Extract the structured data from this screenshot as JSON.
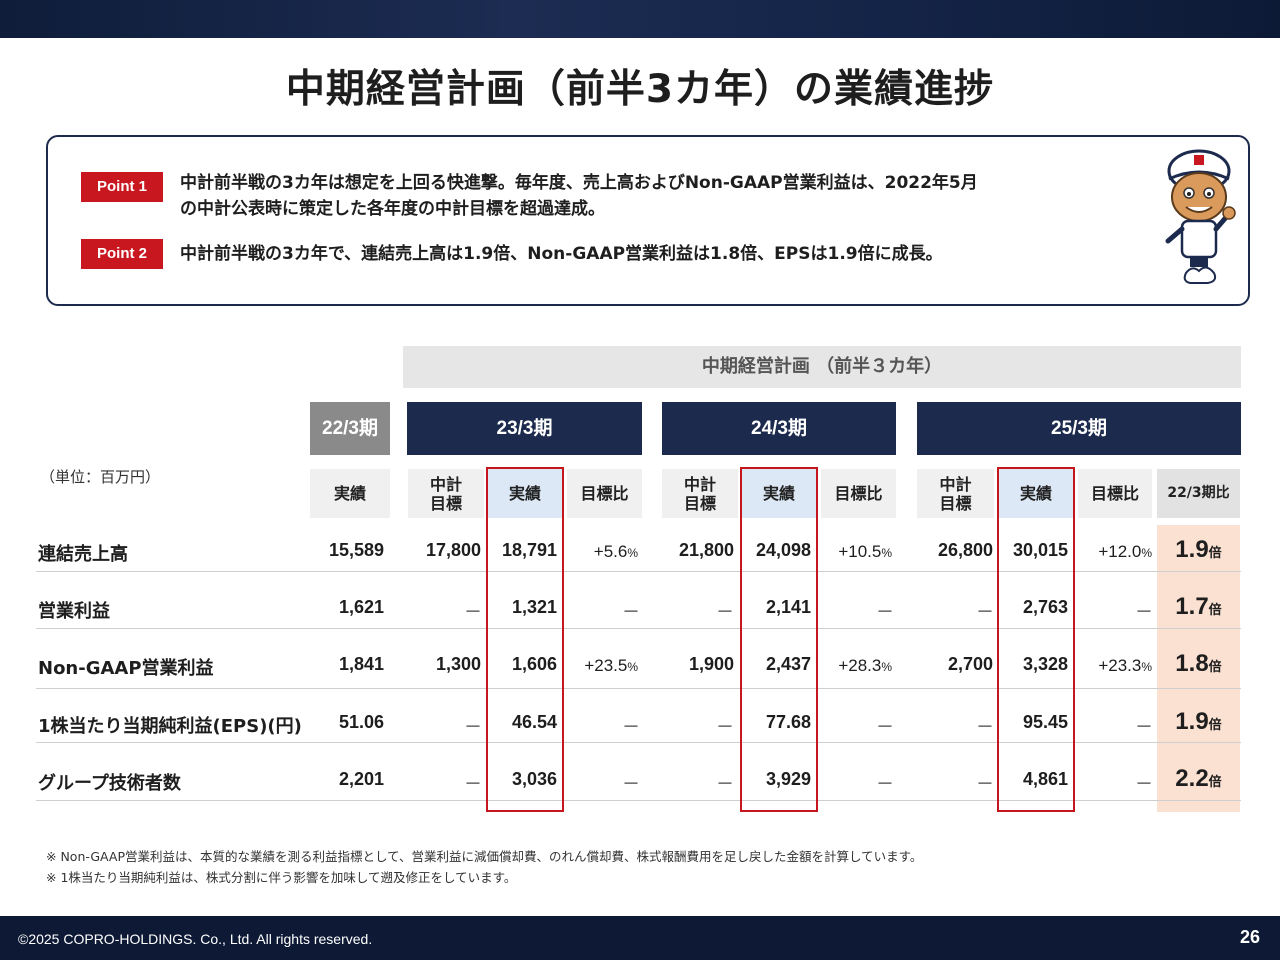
{
  "title": "中期経営計画（前半3カ年）の業績進捗",
  "points": [
    {
      "badge": "Point 1",
      "text": "中計前半戦の3カ年は想定を上回る快進撃。毎年度、売上高およびNon-GAAP営業利益は、2022年5月\nの中計公表時に策定した各年度の中計目標を超過達成。"
    },
    {
      "badge": "Point 2",
      "text": "中計前半戦の3カ年で、連結売上高は1.9倍、Non-GAAP営業利益は1.8倍、EPSは1.9倍に成長。"
    }
  ],
  "table": {
    "plan_header": "中期経営計画 （前半３カ年）",
    "unit_label": "（単位：百万円）",
    "years": {
      "prev": "22/3期",
      "y23": "23/3期",
      "y24": "24/3期",
      "y25": "25/3期"
    },
    "sub_headers": {
      "actual": "実績",
      "target": "中計\n目標",
      "ratio": "目標比",
      "vs22": "22/3期比"
    },
    "rows": [
      {
        "label": "連結売上高",
        "prev": "15,589",
        "t23": "17,800",
        "a23": "18,791",
        "r23": "+5.6",
        "t24": "21,800",
        "a24": "24,098",
        "r24": "+10.5",
        "t25": "26,800",
        "a25": "30,015",
        "r25": "+12.0",
        "mult": "1.9"
      },
      {
        "label": "営業利益",
        "prev": "1,621",
        "t23": "－",
        "a23": "1,321",
        "r23": "－",
        "t24": "－",
        "a24": "2,141",
        "r24": "－",
        "t25": "－",
        "a25": "2,763",
        "r25": "－",
        "mult": "1.7"
      },
      {
        "label": "Non-GAAP営業利益",
        "prev": "1,841",
        "t23": "1,300",
        "a23": "1,606",
        "r23": "+23.5",
        "t24": "1,900",
        "a24": "2,437",
        "r24": "+28.3",
        "t25": "2,700",
        "a25": "3,328",
        "r25": "+23.3",
        "mult": "1.8"
      },
      {
        "label": "1株当たり当期純利益(EPS)(円)",
        "prev": "51.06",
        "t23": "－",
        "a23": "46.54",
        "r23": "－",
        "t24": "－",
        "a24": "77.68",
        "r24": "－",
        "t25": "－",
        "a25": "95.45",
        "r25": "－",
        "mult": "1.9"
      },
      {
        "label": "グループ技術者数",
        "prev": "2,201",
        "t23": "－",
        "a23": "3,036",
        "r23": "－",
        "t24": "－",
        "a24": "3,929",
        "r24": "－",
        "t25": "－",
        "a25": "4,861",
        "r25": "－",
        "mult": "2.2"
      }
    ],
    "percent_unit": "%",
    "mult_unit": "倍"
  },
  "notes": [
    "※ Non-GAAP営業利益は、本質的な業績を測る利益指標として、営業利益に減価償却費、のれん償却費、株式報酬費用を足し戻した金額を計算しています。",
    "※ 1株当たり当期純利益は、株式分割に伴う影響を加味して遡及修正をしています。"
  ],
  "footer": {
    "copyright": "©2025 COPRO-HOLDINGS. Co., Ltd. All rights reserved.",
    "page": "26"
  },
  "colors": {
    "navy": "#1c2a4d",
    "accent_red": "#c8171e",
    "highlight": "#fbe1d2",
    "actual_bg": "#dce8f6"
  }
}
